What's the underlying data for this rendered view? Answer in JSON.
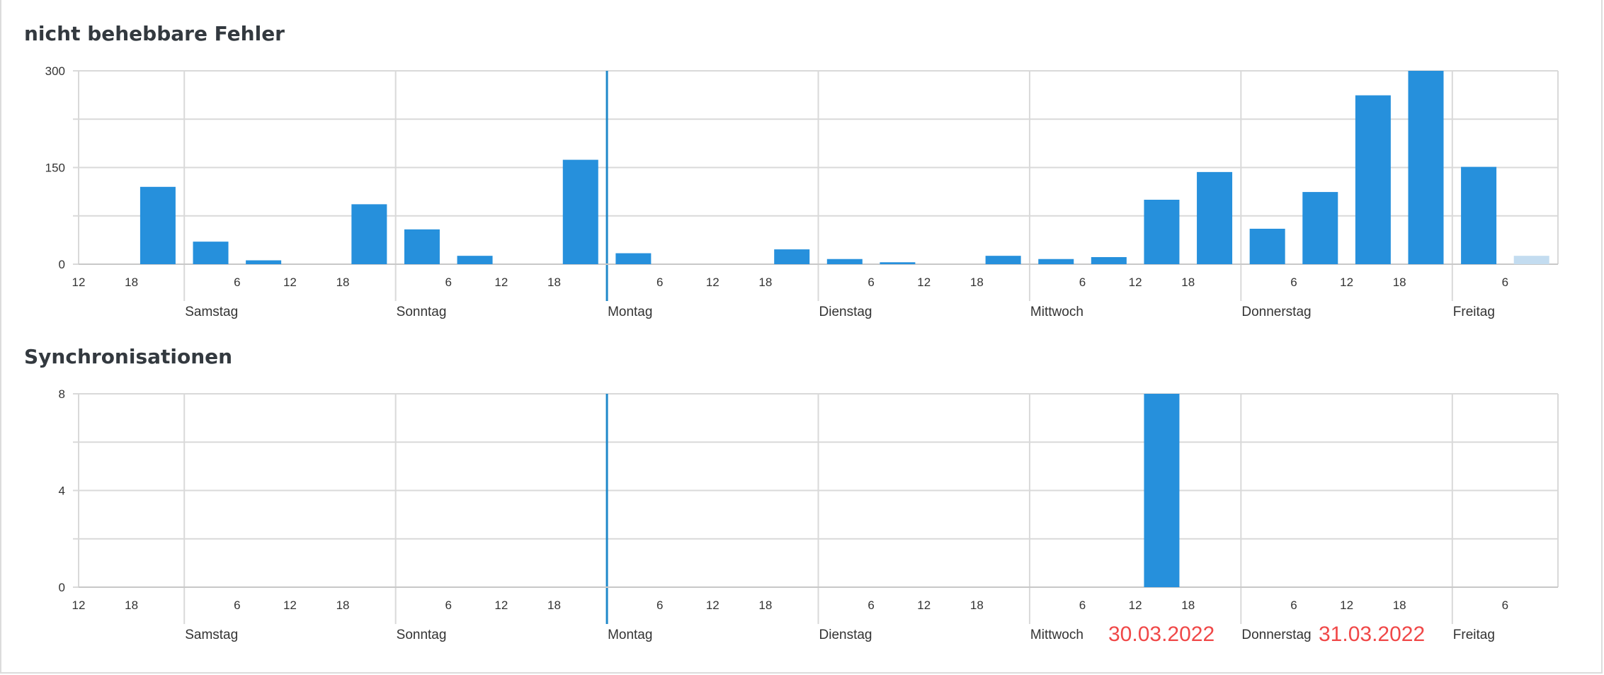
{
  "colors": {
    "bar": "#2690dc",
    "bar_light": "#c3dcf0",
    "grid": "#d9d9d9",
    "today_line": "#1f88c9",
    "date_mark": "#f04848"
  },
  "chart_data": [
    {
      "type": "bar",
      "title": "nicht behebbare Fehler",
      "ylim": [
        0,
        300
      ],
      "yticks": [
        0,
        150,
        300
      ],
      "grid": true,
      "x_start_hour": 12,
      "total_hours": 168,
      "bin_hours": 6,
      "day_labels": [
        "Samstag",
        "Sonntag",
        "Montag",
        "Dienstag",
        "Mittwoch",
        "Donnerstag",
        "Freitag"
      ],
      "hour_tick_labels": [
        "12",
        "18",
        "6",
        "12",
        "18",
        "6",
        "12",
        "18",
        "6",
        "12",
        "18",
        "6",
        "12",
        "18",
        "6",
        "12",
        "18",
        "6",
        "12",
        "18",
        "6"
      ],
      "series": [
        {
          "values": [
            0,
            120,
            35,
            6,
            0,
            93,
            54,
            13,
            0,
            162,
            17,
            0,
            0,
            23,
            8,
            3,
            0,
            13,
            8,
            11,
            100,
            143,
            55,
            112,
            262,
            300,
            151,
            13
          ],
          "partial_last": true
        }
      ]
    },
    {
      "type": "bar",
      "title": "Synchronisationen",
      "ylim": [
        0,
        8
      ],
      "yticks": [
        0,
        4,
        8
      ],
      "grid": true,
      "x_start_hour": 12,
      "total_hours": 168,
      "bin_hours": 6,
      "day_labels": [
        "Samstag",
        "Sonntag",
        "Montag",
        "Dienstag",
        "Mittwoch",
        "Donnerstag",
        "Freitag"
      ],
      "hour_tick_labels": [
        "12",
        "18",
        "6",
        "12",
        "18",
        "6",
        "12",
        "18",
        "6",
        "12",
        "18",
        "6",
        "12",
        "18",
        "6",
        "12",
        "18",
        "6",
        "12",
        "18",
        "6"
      ],
      "series": [
        {
          "values": [
            0,
            0,
            0,
            0,
            0,
            0,
            0,
            0,
            0,
            0,
            0,
            0,
            0,
            0,
            0,
            0,
            0,
            0,
            0,
            0,
            8,
            0,
            0,
            0,
            0,
            0,
            0,
            0
          ],
          "partial_last": false
        }
      ]
    }
  ],
  "date_marks": [
    "30.03.2022",
    "31.03.2022"
  ]
}
